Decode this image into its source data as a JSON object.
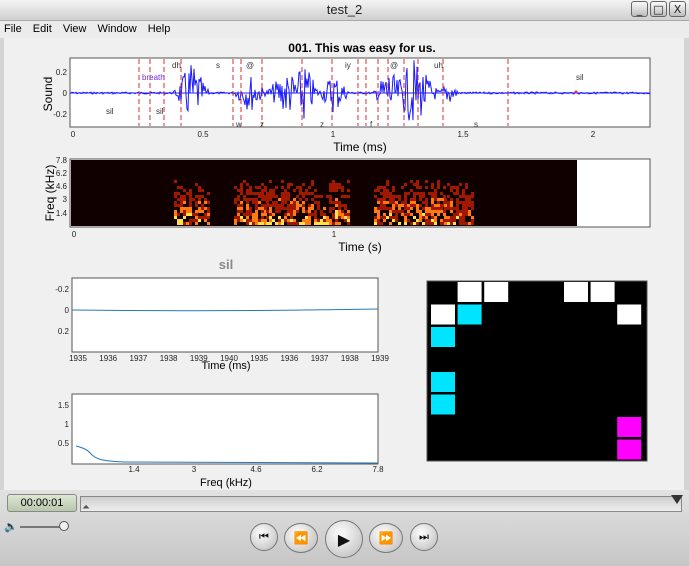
{
  "window": {
    "title": "test_2",
    "buttons": {
      "minimize": "_",
      "maximize": "□",
      "close": "X"
    }
  },
  "menu": [
    "File",
    "Edit",
    "View",
    "Window",
    "Help"
  ],
  "figure": {
    "waveform": {
      "title": "001. This was easy for us.",
      "ylabel": "Sound",
      "xlabel": "Time (ms)",
      "yticks": [
        "0.2",
        "0",
        "-0.2"
      ],
      "xticks": [
        "0",
        "0.5",
        "1",
        "1.5",
        "2"
      ],
      "labels_top": [
        "breath",
        "dh",
        "s",
        "@",
        "iy",
        "@",
        "uh",
        "sil"
      ],
      "labels_bottom": [
        "sil",
        "sil",
        "w",
        "z",
        "z",
        "f",
        "s"
      ]
    },
    "spectrogram": {
      "ylabel": "Freq (kHz)",
      "xlabel": "Time (s)",
      "yticks": [
        "7.8",
        "6.2",
        "4.6",
        "3",
        "1.4"
      ],
      "xticks": [
        "0",
        "1"
      ]
    },
    "segment": {
      "title": "sil",
      "xlabel": "Time (ms)",
      "yticks": [
        "-0.2",
        "0",
        "0.2"
      ],
      "xticks": [
        "1935",
        "1936",
        "1937",
        "1938",
        "1939",
        "1940",
        "1935",
        "1936",
        "1937",
        "1938",
        "1939"
      ]
    },
    "spectrum": {
      "xlabel": "Freq (kHz)",
      "yticks": [
        "1.5",
        "1",
        "0.5"
      ],
      "xticks": [
        "1.4",
        "3",
        "4.6",
        "6.2",
        "7.8"
      ]
    },
    "grid_colors": {
      "white": "#ffffff",
      "cyan": "#00e5ff",
      "magenta": "#ff00ff",
      "black": "#000000"
    }
  },
  "transport": {
    "time": "00:00:01",
    "icons": [
      "speaker-icon",
      "skip-back-icon",
      "rewind-icon",
      "play-icon",
      "fast-forward-icon",
      "skip-forward-icon"
    ]
  }
}
